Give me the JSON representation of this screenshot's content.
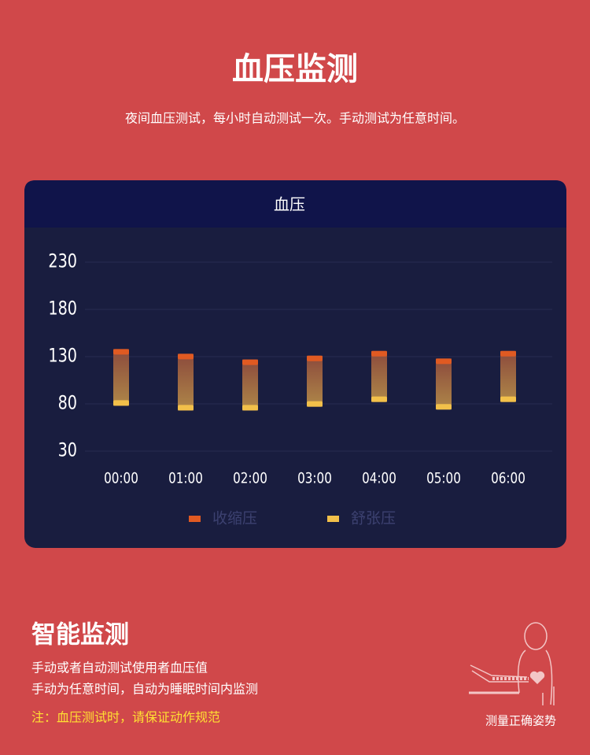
{
  "page": {
    "title": "血压监测",
    "subtitle": "夜间血压测试，每小时自动测试一次。手动测试为任意时间。"
  },
  "chart_data": {
    "type": "range-bar",
    "title": "血压",
    "categories": [
      "00:00",
      "01:00",
      "02:00",
      "03:00",
      "04:00",
      "05:00",
      "06:00"
    ],
    "series": [
      {
        "name": "收缩压",
        "color": "#e05a22",
        "values": [
          138,
          133,
          127,
          131,
          136,
          128,
          136
        ]
      },
      {
        "name": "舒张压",
        "color": "#f2c04a",
        "values": [
          78,
          73,
          73,
          77,
          82,
          74,
          82
        ]
      }
    ],
    "ylim": [
      30,
      230
    ],
    "yticks": [
      30,
      80,
      130,
      180,
      230
    ],
    "grid": true,
    "legend": "bottom"
  },
  "features": {
    "title": "智能监测",
    "lines": [
      "手动或者自动测试使用者血压值",
      "手动为任意时间，自动为睡眠时间内监测"
    ],
    "note": "注：血压测试时，请保证动作规范",
    "illustration_caption": "测量正确姿势"
  }
}
